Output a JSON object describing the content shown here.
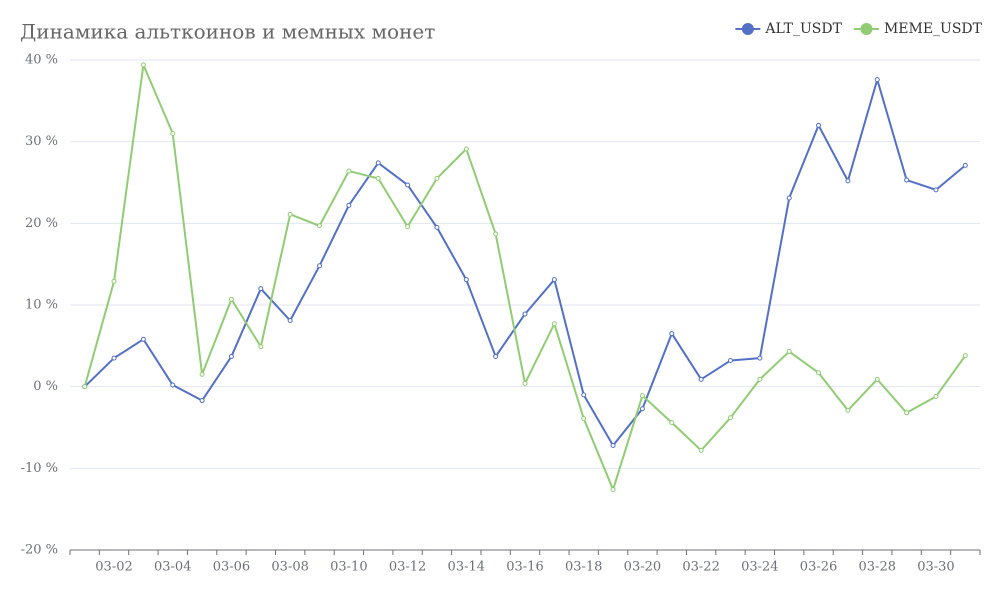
{
  "chart_data": {
    "type": "line",
    "title": "Динамика альткоинов и мемных монет",
    "categories": [
      null,
      "03-02",
      null,
      "03-04",
      null,
      "03-06",
      null,
      "03-08",
      null,
      "03-10",
      null,
      "03-12",
      null,
      "03-14",
      null,
      "03-16",
      null,
      "03-18",
      null,
      "03-20",
      null,
      "03-22",
      null,
      "03-24",
      null,
      "03-26",
      null,
      "03-28",
      null,
      "03-30",
      null
    ],
    "series": [
      {
        "name": "ALT_USDT",
        "color": "#5470c6",
        "values": [
          0,
          3.5,
          5.8,
          0.2,
          -1.7,
          3.7,
          12,
          8.1,
          14.8,
          22.2,
          27.4,
          24.7,
          19.5,
          13.1,
          3.7,
          8.9,
          13.1,
          -1,
          -7.2,
          -2.7,
          6.5,
          0.9,
          3.2,
          3.5,
          23.1,
          32,
          25.2,
          37.6,
          25.3,
          24.1,
          27.1
        ]
      },
      {
        "name": "MEME_USDT",
        "color": "#91cc75",
        "values": [
          0,
          12.9,
          39.4,
          31,
          1.5,
          10.7,
          4.9,
          21.1,
          19.7,
          26.4,
          25.5,
          19.6,
          25.5,
          29.1,
          18.7,
          0.4,
          7.7,
          -3.9,
          -12.6,
          -1.1,
          -4.4,
          -7.8,
          -3.8,
          0.9,
          4.3,
          1.7,
          -2.9,
          0.9,
          -3.2,
          -1.2,
          3.8
        ]
      }
    ],
    "ylim": [
      -20,
      40
    ],
    "yticks": [
      {
        "value": -20,
        "label": "-20 %"
      },
      {
        "value": -10,
        "label": "-10 %"
      },
      {
        "value": 0,
        "label": "0 %"
      },
      {
        "value": 10,
        "label": "10 %"
      },
      {
        "value": 20,
        "label": "20 %"
      },
      {
        "value": 30,
        "label": "30 %"
      },
      {
        "value": 40,
        "label": "40 %"
      }
    ],
    "grid": true,
    "legend": "top-right"
  }
}
